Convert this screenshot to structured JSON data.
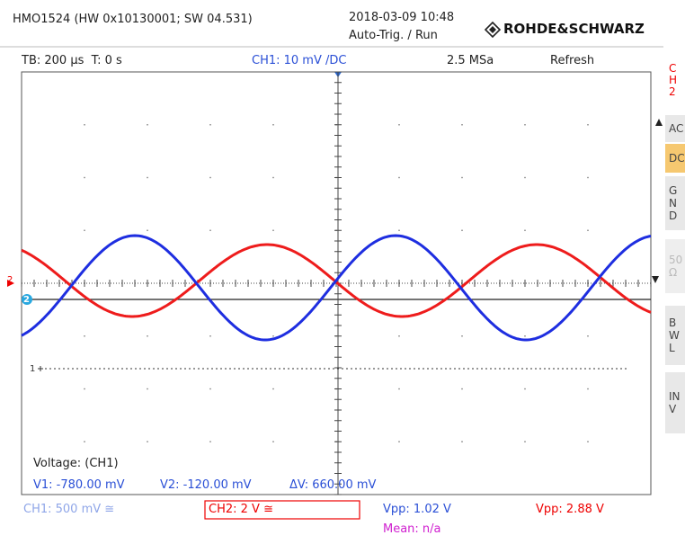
{
  "header": {
    "device": "HMO1524 (HW 0x10130001; SW 04.531)",
    "datetime": "2018-03-09 10:48",
    "trigger": "Auto-Trig. / Run",
    "brand": "ROHDE&SCHWARZ"
  },
  "status_bar": {
    "timebase": "TB: 200 µs  T: 0 s",
    "channel": "CH1: 10 mV /DC",
    "sample_rate": "2.5 MSa",
    "mode": "Refresh"
  },
  "side_menu": {
    "channel": "CH2",
    "buttons": [
      "AC",
      "DC",
      "GND",
      "50Ω",
      "BWL",
      "INV"
    ]
  },
  "markers": {
    "ch2": "2",
    "ch1": "1"
  },
  "measurement": {
    "title": "Voltage: (CH1)",
    "v1": "V1: -780.00 mV",
    "v2": "V2: -120.00 mV",
    "dv": "ΔV: 660.00 mV"
  },
  "footer": {
    "ch1": "CH1: 500 mV ≅",
    "ch2": "CH2: 2 V ≅",
    "vpp1": "Vpp: 1.02 V",
    "vpp2": "Vpp: 2.88 V",
    "mean": "Mean: n/a"
  }
}
